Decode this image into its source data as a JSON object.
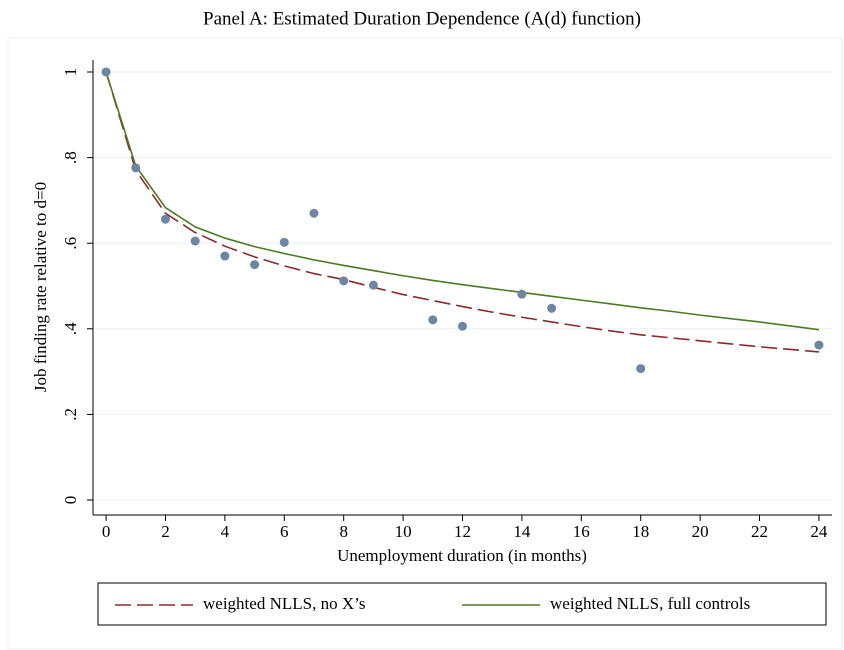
{
  "chart_data": {
    "type": "scatter",
    "title": "Panel A: Estimated Duration Dependence (A(d) function)",
    "xlabel": "Unemployment duration (in months)",
    "ylabel": "Job finding rate relative to d=0",
    "xlim": [
      -0.44,
      24.44
    ],
    "ylim": [
      -0.035,
      1.028
    ],
    "xticks": [
      0,
      2,
      4,
      6,
      8,
      10,
      12,
      14,
      16,
      18,
      20,
      22,
      24
    ],
    "yticks": [
      0,
      {
        "value": 0.2,
        "label": ".2"
      },
      {
        "value": 0.4,
        "label": ".4"
      },
      {
        "value": 0.6,
        "label": ".6"
      },
      {
        "value": 0.8,
        "label": ".8"
      },
      1
    ],
    "grid": true,
    "points": {
      "color": "#6c86a3",
      "x": [
        0,
        1,
        2,
        3,
        4,
        5,
        6,
        7,
        8,
        9,
        11,
        12,
        14,
        15,
        18,
        24
      ],
      "y": [
        1,
        0.776,
        0.656,
        0.605,
        0.57,
        0.55,
        0.602,
        0.67,
        0.512,
        0.502,
        0.421,
        0.406,
        0.481,
        0.448,
        0.307,
        0.362
      ]
    },
    "series": [
      {
        "name": "weighted NLLS, no X’s",
        "color": "#8b2a2e",
        "dashed": true,
        "x": [
          0,
          1,
          2,
          3,
          4,
          5,
          6,
          7,
          8,
          9,
          10,
          11,
          12,
          13,
          14,
          15,
          16,
          17,
          18,
          19,
          20,
          21,
          22,
          23,
          24
        ],
        "values": [
          1,
          0.77,
          0.67,
          0.625,
          0.593,
          0.568,
          0.547,
          0.529,
          0.515,
          0.497,
          0.48,
          0.466,
          0.452,
          0.439,
          0.427,
          0.416,
          0.405,
          0.395,
          0.386,
          0.379,
          0.372,
          0.365,
          0.358,
          0.352,
          0.346
        ]
      },
      {
        "name": "weighted NLLS, full controls",
        "color": "#4f7a24",
        "dashed": false,
        "x": [
          0,
          1,
          2,
          3,
          4,
          5,
          6,
          7,
          8,
          9,
          10,
          11,
          12,
          13,
          14,
          15,
          16,
          17,
          18,
          19,
          20,
          21,
          22,
          23,
          24
        ],
        "values": [
          1,
          0.78,
          0.683,
          0.638,
          0.612,
          0.592,
          0.576,
          0.561,
          0.548,
          0.536,
          0.524,
          0.513,
          0.503,
          0.494,
          0.485,
          0.476,
          0.467,
          0.458,
          0.449,
          0.441,
          0.432,
          0.424,
          0.416,
          0.407,
          0.398
        ]
      }
    ],
    "legend": "bottom"
  }
}
